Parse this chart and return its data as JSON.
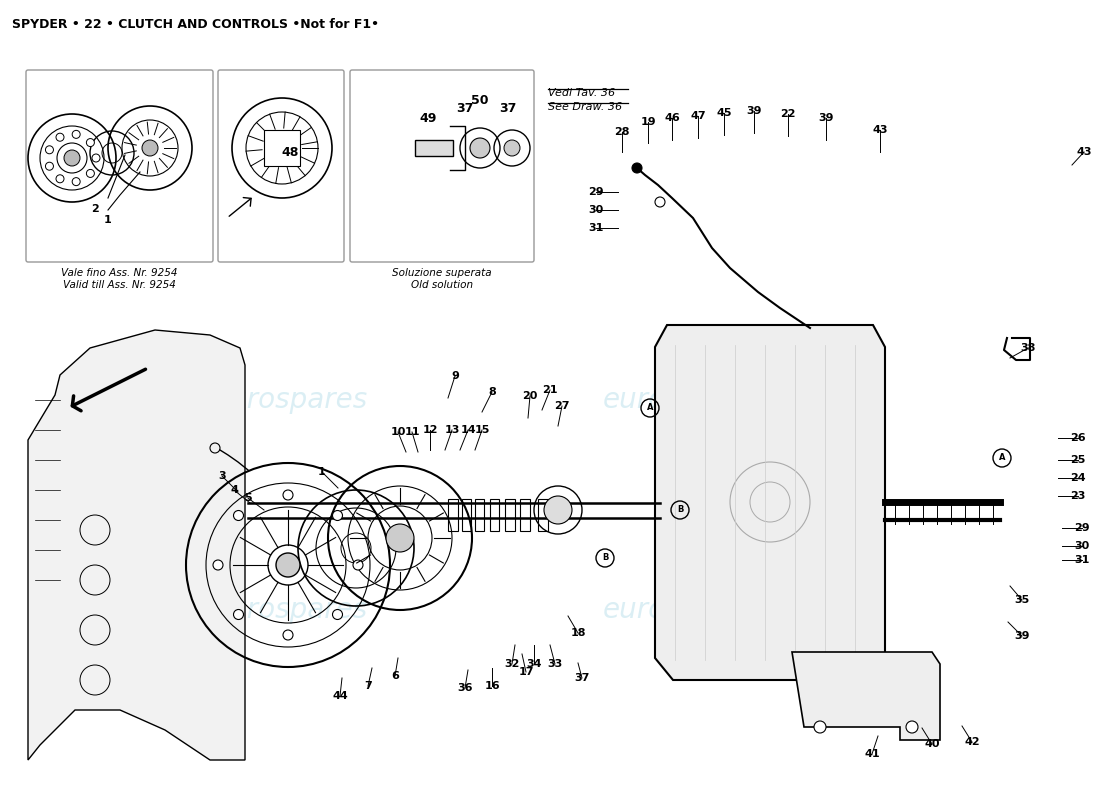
{
  "title": "SPYDER • 22 • CLUTCH AND CONTROLS •Not for F1•",
  "bg_color": "#ffffff",
  "watermark_color": "#cce8f0",
  "box1_label_it": "Vale fino Ass. Nr. 9254",
  "box1_label_en": "Valid till Ass. Nr. 9254",
  "box2_label_it": "Soluzione superata",
  "box2_label_en": "Old solution",
  "vedi_tav": "Vedi Tav. 36",
  "see_draw": "See Draw. 36"
}
